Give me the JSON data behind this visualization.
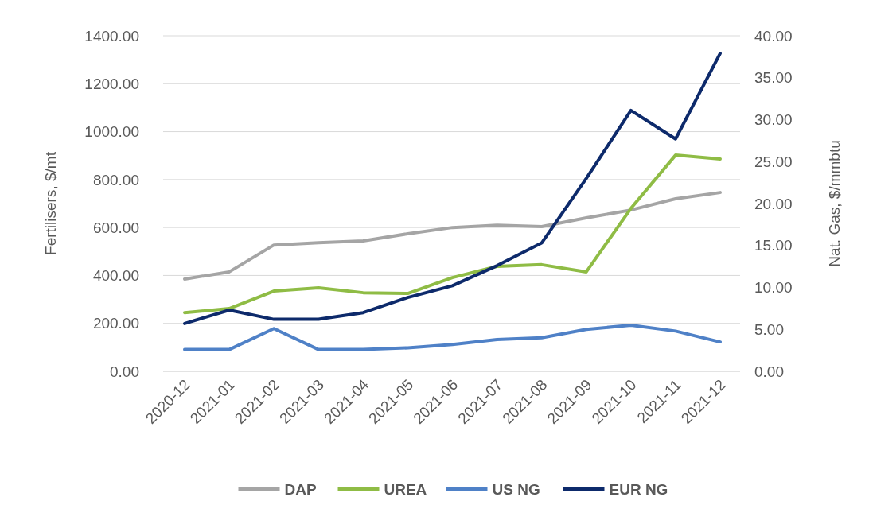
{
  "chart_data": {
    "type": "line",
    "xlabel": null,
    "ylabel": "Fertilisers, $/mt",
    "y2label": "Nat. Gas, $/mmbtu",
    "categories": [
      "2020-12",
      "2021-01",
      "2021-02",
      "2021-03",
      "2021-04",
      "2021-05",
      "2021-06",
      "2021-07",
      "2021-08",
      "2021-09",
      "2021-10",
      "2021-11",
      "2021-12"
    ],
    "series": [
      {
        "name": "DAP",
        "color": "#a5a5a5",
        "values": [
          385,
          415,
          527,
          537,
          544,
          574,
          600,
          610,
          604,
          640,
          673,
          720,
          746
        ]
      },
      {
        "name": "UREA",
        "color": "#8fbc45",
        "values": [
          245,
          262,
          335,
          348,
          328,
          325,
          391,
          438,
          445,
          415,
          680,
          902,
          886
        ]
      },
      {
        "name": "US NG",
        "color": "#4f81c7",
        "axis": "y2",
        "values": [
          2.6,
          2.6,
          5.1,
          2.6,
          2.6,
          2.8,
          3.2,
          3.8,
          4.0,
          5.0,
          5.5,
          4.8,
          3.5
        ]
      },
      {
        "name": "EUR NG",
        "color": "#0d2a6b",
        "axis": "y2",
        "values": [
          5.7,
          7.3,
          6.2,
          6.2,
          7.0,
          8.8,
          10.2,
          12.6,
          15.3,
          23.0,
          31.1,
          27.7,
          37.9
        ]
      }
    ],
    "ylim": [
      0,
      1400
    ],
    "yticks": [
      {
        "value": 0,
        "label": "0.00"
      },
      {
        "value": 200,
        "label": "200.00"
      },
      {
        "value": 400,
        "label": "400.00"
      },
      {
        "value": 600,
        "label": "600.00"
      },
      {
        "value": 800,
        "label": "800.00"
      },
      {
        "value": 1000,
        "label": "1000.00"
      },
      {
        "value": 1200,
        "label": "1200.00"
      },
      {
        "value": 1400,
        "label": "1400.00"
      }
    ],
    "y2lim": [
      0,
      40
    ],
    "y2ticks": [
      {
        "value": 0,
        "label": "0.00"
      },
      {
        "value": 5,
        "label": "5.00"
      },
      {
        "value": 10,
        "label": "10.00"
      },
      {
        "value": 15,
        "label": "15.00"
      },
      {
        "value": 20,
        "label": "20.00"
      },
      {
        "value": 25,
        "label": "25.00"
      },
      {
        "value": 30,
        "label": "30.00"
      },
      {
        "value": 35,
        "label": "35.00"
      },
      {
        "value": 40,
        "label": "40.00"
      }
    ],
    "grid": "y",
    "legend": "bottom",
    "marker": "none",
    "line_style": "solid"
  }
}
